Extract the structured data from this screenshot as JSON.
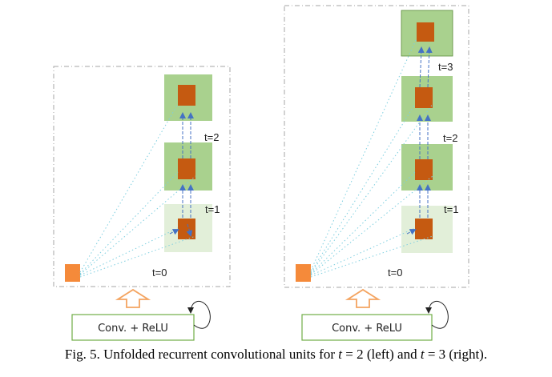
{
  "left_diagram": {
    "title": "Unfolded unit t = 2",
    "time_labels": [
      "t=0",
      "t=1",
      "t=2"
    ],
    "block_label": "Conv. + ReLU"
  },
  "right_diagram": {
    "title": "Unfolded unit t = 3",
    "time_labels": [
      "t=0",
      "t=1",
      "t=2",
      "t=3"
    ],
    "block_label": "Conv. + ReLU"
  },
  "caption": {
    "prefix": "Fig. 5. Unfolded recurrent convolutional units for ",
    "t1_var": "t",
    "t1_rest": " = 2 (left) and ",
    "t2_var": "t",
    "t2_rest": " = 3 (right)."
  },
  "colors": {
    "light_green": "#e2efd9",
    "mid_green": "#a9d18e",
    "unit_orange": "#c55a11",
    "input_orange": "#f58a3a",
    "arrow_blue": "#4472c4",
    "dotted_teal": "#7ecfe0",
    "frame_gray": "#a6a6a6",
    "block_border": "#70ad47",
    "up_arrow_orange": "#f4a460"
  }
}
